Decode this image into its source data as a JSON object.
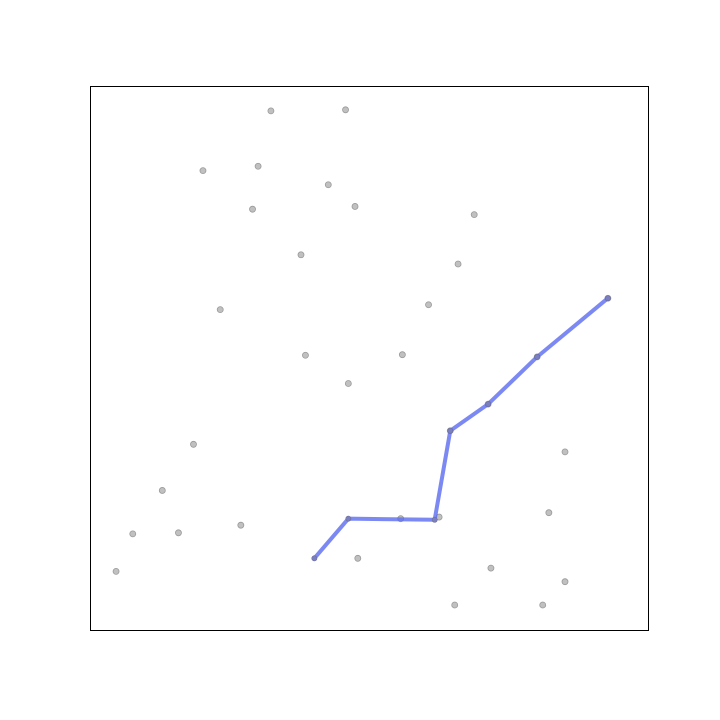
{
  "chart_data": {
    "type": "scatter",
    "title": "",
    "xlabel": "",
    "ylabel": "",
    "xlim": [
      0,
      100
    ],
    "ylim": [
      0,
      100
    ],
    "grid": false,
    "axis_ticks": false,
    "colors": {
      "points": "#c0c0c0",
      "point_stroke": "#9a9a9a",
      "path": "#5b6cf0"
    },
    "series": [
      {
        "type": "scatter",
        "x": [
          32.3,
          45.7,
          20.1,
          30.0,
          42.6,
          29.0,
          47.4,
          68.8,
          37.7,
          65.9,
          60.6,
          23.2,
          38.5,
          55.9,
          46.2,
          92.8,
          80.1,
          71.3,
          64.5,
          18.4,
          12.8,
          85.1,
          26.9,
          7.5,
          55.6,
          62.5,
          82.2,
          47.9,
          15.7,
          4.5,
          71.8,
          85.1,
          81.1,
          65.3
        ],
        "y": [
          95.6,
          95.8,
          84.6,
          85.4,
          82.0,
          77.5,
          78.0,
          76.5,
          69.1,
          67.4,
          59.9,
          59.0,
          50.6,
          50.7,
          45.4,
          61.1,
          50.3,
          41.6,
          36.7,
          34.2,
          25.7,
          32.8,
          19.3,
          17.7,
          20.5,
          20.8,
          21.6,
          13.2,
          17.9,
          10.8,
          11.4,
          8.9,
          4.6,
          4.6
        ]
      },
      {
        "type": "line",
        "x": [
          40.1,
          46.2,
          61.7,
          64.5,
          71.3,
          80.1,
          92.8
        ],
        "y": [
          13.2,
          20.5,
          20.3,
          36.7,
          41.6,
          50.3,
          61.1
        ]
      }
    ]
  }
}
